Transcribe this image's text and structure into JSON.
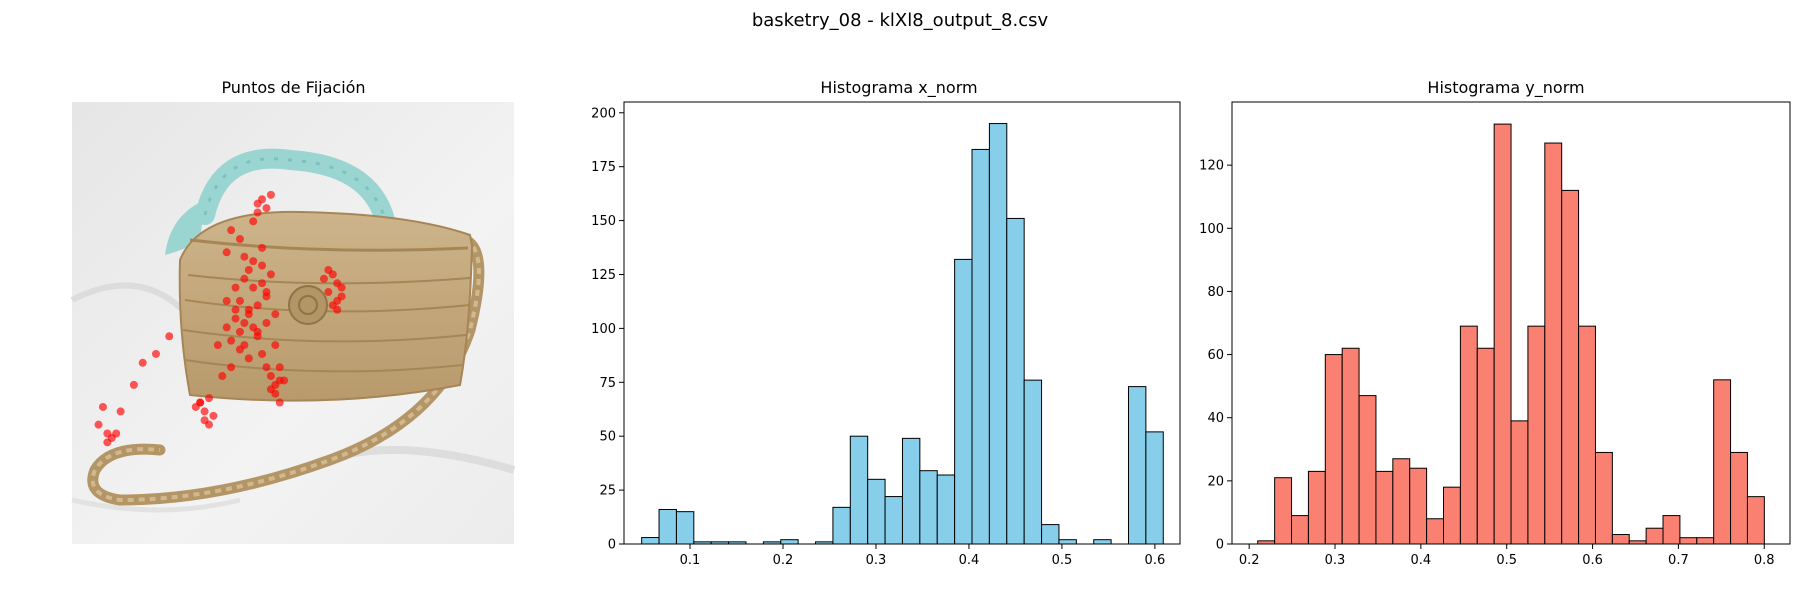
{
  "figure": {
    "title": "basketry_08 - klXl8_output_8.csv"
  },
  "chart_data": [
    {
      "type": "scatter",
      "title": "Puntos de Fijación",
      "background": "photo of a woven straw basket bag with turquoise floral scarf tied on the handle, on white fabric",
      "point_color": "#ff0000",
      "axes_visible": false,
      "note": "fixation points over image (approximate normalized coordinates, y measured from top)",
      "x": [
        0.42,
        0.43,
        0.44,
        0.42,
        0.41,
        0.45,
        0.4,
        0.39,
        0.41,
        0.43,
        0.44,
        0.38,
        0.37,
        0.4,
        0.42,
        0.44,
        0.45,
        0.43,
        0.41,
        0.39,
        0.38,
        0.36,
        0.35,
        0.37,
        0.39,
        0.42,
        0.44,
        0.46,
        0.43,
        0.4,
        0.38,
        0.36,
        0.34,
        0.33,
        0.35,
        0.37,
        0.59,
        0.6,
        0.58,
        0.61,
        0.59,
        0.6,
        0.57,
        0.58,
        0.61,
        0.6,
        0.45,
        0.46,
        0.47,
        0.45,
        0.44,
        0.31,
        0.29,
        0.3,
        0.32,
        0.28,
        0.3,
        0.31,
        0.29,
        0.08,
        0.09,
        0.08,
        0.1,
        0.06,
        0.07,
        0.11,
        0.14,
        0.16,
        0.22,
        0.19,
        0.46,
        0.47,
        0.48,
        0.46,
        0.47,
        0.41,
        0.4,
        0.42,
        0.43,
        0.39,
        0.38,
        0.36,
        0.35
      ],
      "y": [
        0.23,
        0.22,
        0.24,
        0.25,
        0.27,
        0.21,
        0.38,
        0.4,
        0.42,
        0.41,
        0.44,
        0.45,
        0.47,
        0.48,
        0.46,
        0.43,
        0.39,
        0.37,
        0.36,
        0.5,
        0.52,
        0.54,
        0.51,
        0.49,
        0.55,
        0.53,
        0.5,
        0.48,
        0.57,
        0.58,
        0.56,
        0.6,
        0.62,
        0.55,
        0.45,
        0.42,
        0.39,
        0.41,
        0.43,
        0.44,
        0.46,
        0.45,
        0.4,
        0.38,
        0.42,
        0.47,
        0.62,
        0.64,
        0.63,
        0.65,
        0.6,
        0.67,
        0.68,
        0.7,
        0.71,
        0.69,
        0.72,
        0.73,
        0.68,
        0.75,
        0.76,
        0.77,
        0.75,
        0.73,
        0.69,
        0.7,
        0.64,
        0.59,
        0.53,
        0.57,
        0.55,
        0.6,
        0.63,
        0.66,
        0.68,
        0.51,
        0.47,
        0.52,
        0.33,
        0.35,
        0.31,
        0.29,
        0.34
      ]
    },
    {
      "type": "bar",
      "title": "Histograma x_norm",
      "bar_color": "#87ceeb",
      "edge_color": "#000000",
      "bin_start": 0.048,
      "bin_width": 0.0187,
      "values": [
        3,
        16,
        15,
        1,
        1,
        1,
        0,
        1,
        2,
        0,
        1,
        17,
        50,
        30,
        22,
        49,
        34,
        32,
        132,
        183,
        195,
        151,
        76,
        9,
        2,
        0,
        2,
        0,
        73,
        52
      ],
      "xlim": [
        0.029,
        0.627
      ],
      "ylim": [
        0,
        205
      ],
      "xticks": [
        "0.1",
        "0.2",
        "0.3",
        "0.4",
        "0.5",
        "0.6"
      ],
      "xtick_values": [
        0.1,
        0.2,
        0.3,
        0.4,
        0.5,
        0.6
      ],
      "yticks": [
        "0",
        "25",
        "50",
        "75",
        "100",
        "125",
        "150",
        "175",
        "200"
      ],
      "ytick_values": [
        0,
        25,
        50,
        75,
        100,
        125,
        150,
        175,
        200
      ]
    },
    {
      "type": "bar",
      "title": "Histograma y_norm",
      "bar_color": "#fa8072",
      "edge_color": "#000000",
      "bin_start": 0.21,
      "bin_width": 0.01967,
      "values": [
        1,
        21,
        9,
        23,
        60,
        62,
        47,
        23,
        27,
        24,
        8,
        18,
        69,
        62,
        133,
        39,
        69,
        127,
        112,
        69,
        29,
        3,
        1,
        5,
        9,
        2,
        2,
        52,
        29,
        15
      ],
      "xlim": [
        0.18,
        0.83
      ],
      "ylim": [
        0,
        140
      ],
      "xticks": [
        "0.2",
        "0.3",
        "0.4",
        "0.5",
        "0.6",
        "0.7",
        "0.8"
      ],
      "xtick_values": [
        0.2,
        0.3,
        0.4,
        0.5,
        0.6,
        0.7,
        0.8
      ],
      "yticks": [
        "0",
        "20",
        "40",
        "60",
        "80",
        "100",
        "120"
      ],
      "ytick_values": [
        0,
        20,
        40,
        60,
        80,
        100,
        120
      ]
    }
  ]
}
